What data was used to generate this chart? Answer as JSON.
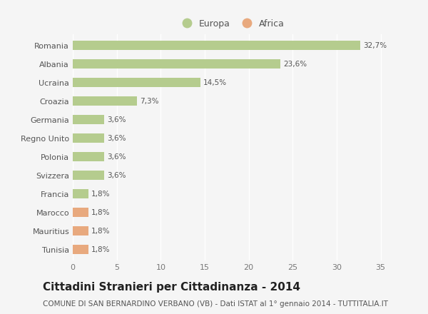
{
  "categories": [
    "Romania",
    "Albania",
    "Ucraina",
    "Croazia",
    "Germania",
    "Regno Unito",
    "Polonia",
    "Svizzera",
    "Francia",
    "Marocco",
    "Mauritius",
    "Tunisia"
  ],
  "values": [
    32.7,
    23.6,
    14.5,
    7.3,
    3.6,
    3.6,
    3.6,
    3.6,
    1.8,
    1.8,
    1.8,
    1.8
  ],
  "labels": [
    "32,7%",
    "23,6%",
    "14,5%",
    "7,3%",
    "3,6%",
    "3,6%",
    "3,6%",
    "3,6%",
    "1,8%",
    "1,8%",
    "1,8%",
    "1,8%"
  ],
  "continents": [
    "Europa",
    "Europa",
    "Europa",
    "Europa",
    "Europa",
    "Europa",
    "Europa",
    "Europa",
    "Europa",
    "Africa",
    "Africa",
    "Africa"
  ],
  "color_europa": "#b5cc8e",
  "color_africa": "#e8a97e",
  "background_color": "#f5f5f5",
  "title": "Cittadini Stranieri per Cittadinanza - 2014",
  "subtitle": "COMUNE DI SAN BERNARDINO VERBANO (VB) - Dati ISTAT al 1° gennaio 2014 - TUTTITALIA.IT",
  "xlim": [
    0,
    36
  ],
  "xticks": [
    0,
    5,
    10,
    15,
    20,
    25,
    30,
    35
  ],
  "legend_europa": "Europa",
  "legend_africa": "Africa",
  "title_fontsize": 11,
  "subtitle_fontsize": 7.5,
  "label_fontsize": 7.5,
  "tick_fontsize": 8,
  "bar_height": 0.5
}
